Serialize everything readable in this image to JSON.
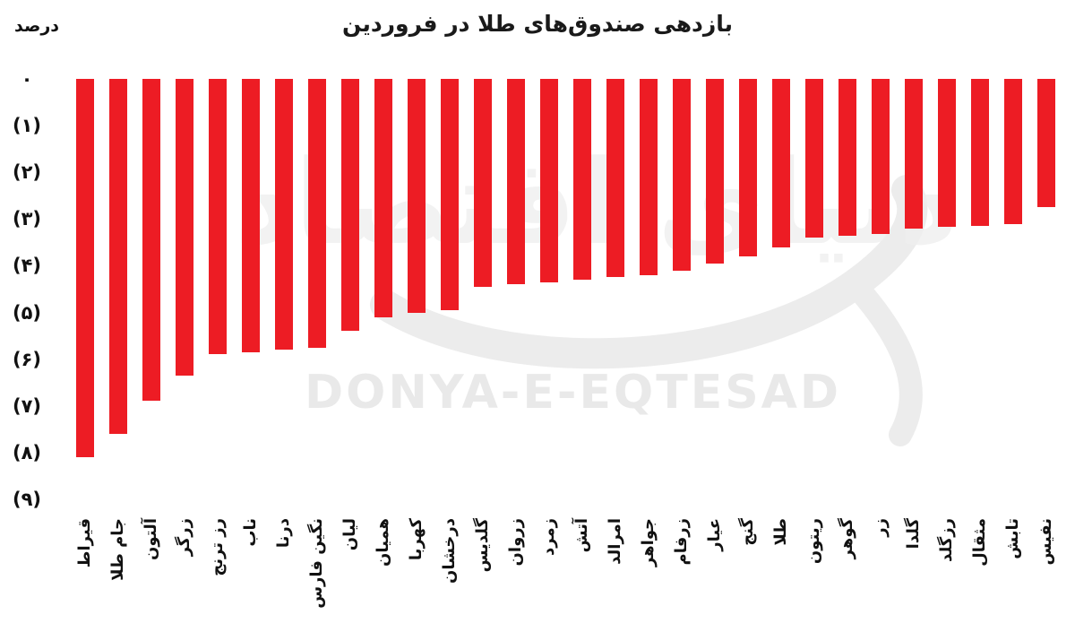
{
  "title": "بازدهی صندوق‌های طلا در فروردین",
  "watermark": {
    "latin": "DONYA-E-EQTESAD",
    "persian": "دنیای اقتصاد"
  },
  "y_axis": {
    "unit_label": "درصد",
    "ticks": [
      "۰",
      "(۱)",
      "(۲)",
      "(۳)",
      "(۴)",
      "(۵)",
      "(۶)",
      "(۷)",
      "(۸)",
      "(۹)"
    ],
    "tick_values": [
      0,
      -1,
      -2,
      -3,
      -4,
      -5,
      -6,
      -7,
      -8,
      -9
    ]
  },
  "chart_data": {
    "type": "bar",
    "orientation": "vertical-negative",
    "title": "بازدهی صندوق‌های طلا در فروردین",
    "ylabel": "درصد",
    "ylim": [
      -9,
      0
    ],
    "grid": false,
    "legend": "none",
    "bar_color": "#ed1c24",
    "categories": [
      "قیراط",
      "جام طلا",
      "آلتون",
      "زرگر",
      "رز ترنج",
      "ناب",
      "درنا",
      "نگین فارس",
      "لیان",
      "همیان",
      "کهربا",
      "درخشان",
      "گلدیس",
      "زروان",
      "زمرد",
      "آتش",
      "امرالد",
      "جواهر",
      "زرفام",
      "عیار",
      "گنج",
      "طلا",
      "ریتون",
      "گوهر",
      "زر",
      "گلدا",
      "رزگلد",
      "مثقال",
      "تابش",
      "نفیس"
    ],
    "values": [
      -8.1,
      -7.6,
      -6.9,
      -6.35,
      -5.9,
      -5.85,
      -5.8,
      -5.75,
      -5.4,
      -5.1,
      -5.0,
      -4.95,
      -4.45,
      -4.4,
      -4.35,
      -4.3,
      -4.25,
      -4.2,
      -4.1,
      -3.95,
      -3.8,
      -3.6,
      -3.4,
      -3.35,
      -3.33,
      -3.2,
      -3.17,
      -3.15,
      -3.1,
      -2.75
    ]
  }
}
